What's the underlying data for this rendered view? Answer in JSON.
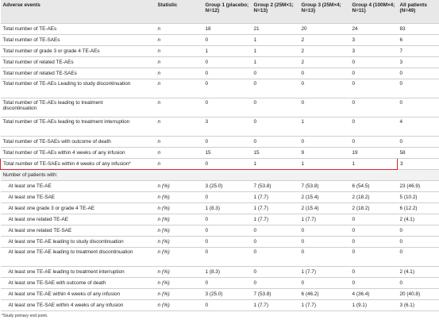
{
  "table": {
    "header": [
      "Adverse events",
      "Statistic",
      "Group 1 (placebo; N=12)",
      "Group 2 (25M×1; N=13)",
      "Group 3 (25M×4; N=13)",
      "Group 4 (100M×4; N=11)",
      "All patients (N=49)"
    ],
    "rows": [
      [
        "Total number of TE-AEs",
        "n",
        "18",
        "21",
        "20",
        "24",
        "83"
      ],
      [
        "Total number of TE-SAEs",
        "n",
        "0",
        "1",
        "2",
        "3",
        "6"
      ],
      [
        "Total number of grade 3 or grade 4 TE-AEs",
        "n",
        "1",
        "1",
        "2",
        "3",
        "7"
      ],
      [
        "Total number of related TE-AEs",
        "n",
        "0",
        "1",
        "2",
        "0",
        "3"
      ],
      [
        "Total number of related TE-SAEs",
        "n",
        "0",
        "0",
        "0",
        "0",
        "0"
      ],
      [
        "Total number of TE-AEs Leading to study discontinuation",
        "n",
        "0",
        "0",
        "0",
        "0",
        "0"
      ],
      [
        "Total number of TE-AEs leading to treatment discontinuation",
        "n",
        "0",
        "0",
        "0",
        "0",
        "0"
      ],
      [
        "Total number of TE-AEs leading to treatment interruption",
        "n",
        "3",
        "0",
        "1",
        "0",
        "4"
      ],
      [
        "Total number of TE-SAEs with outcome of death",
        "n",
        "0",
        "0",
        "0",
        "0",
        "0"
      ],
      [
        "Total number of TE-AEs within 4 weeks of any infusion",
        "n",
        "15",
        "15",
        "9",
        "19",
        "58"
      ],
      [
        "Total number of TE-SAEs within 4 weeks of any infusion*",
        "n",
        "0",
        "1",
        "1",
        "1",
        "3"
      ]
    ],
    "section": "Number of patients with:",
    "patient_rows": [
      [
        "At least one TE-AE",
        "n (%)",
        "3 (25.0)",
        "7 (53.8)",
        "7 (53.8)",
        "6 (54.5)",
        "23 (46.9)"
      ],
      [
        "At least one TE-SAE",
        "n (%)",
        "0",
        "1 (7.7)",
        "2 (15.4)",
        "2 (18.2)",
        "5 (10.2)"
      ],
      [
        "At least one grade 3 or grade 4 TE-AE",
        "n (%)",
        "1 (8.3)",
        "1 (7.7)",
        "2 (15.4)",
        "2 (18.2)",
        "6 (12.2)"
      ],
      [
        "At least one related TE-AE",
        "n (%)",
        "0",
        "1 (7.7)",
        "1 (7.7)",
        "0",
        "2 (4.1)"
      ],
      [
        "At least one related TE-SAE",
        "n (%)",
        "0",
        "0",
        "0",
        "0",
        "0"
      ],
      [
        "At least one TE-AE leading to study discontinuation",
        "n (%)",
        "0",
        "0",
        "0",
        "0",
        "0"
      ],
      [
        "At least one TE-AE leading to treatment discontinuation",
        "n (%)",
        "0",
        "0",
        "0",
        "0",
        "0"
      ],
      [
        "At least one TE-AE leading to treatment interruption",
        "n (%)",
        "1 (8.3)",
        "0",
        "1 (7.7)",
        "0",
        "2 (4.1)"
      ],
      [
        "At least one TE-SAE with outcome of death",
        "n (%)",
        "0",
        "0",
        "0",
        "0",
        "0"
      ],
      [
        "At least one TE-AE within 4 weeks of any infusion",
        "n (%)",
        "3 (25.0)",
        "7 (53.8)",
        "6 (46.2)",
        "4 (36.4)",
        "20 (40.8)"
      ],
      [
        "At least one TE-SAE within 4 weeks of any infusion",
        "n (%)",
        "0",
        "1 (7.7)",
        "1 (7.7)",
        "1 (9.1)",
        "3 (6.1)"
      ]
    ],
    "footnote": "*Study primary end point."
  }
}
